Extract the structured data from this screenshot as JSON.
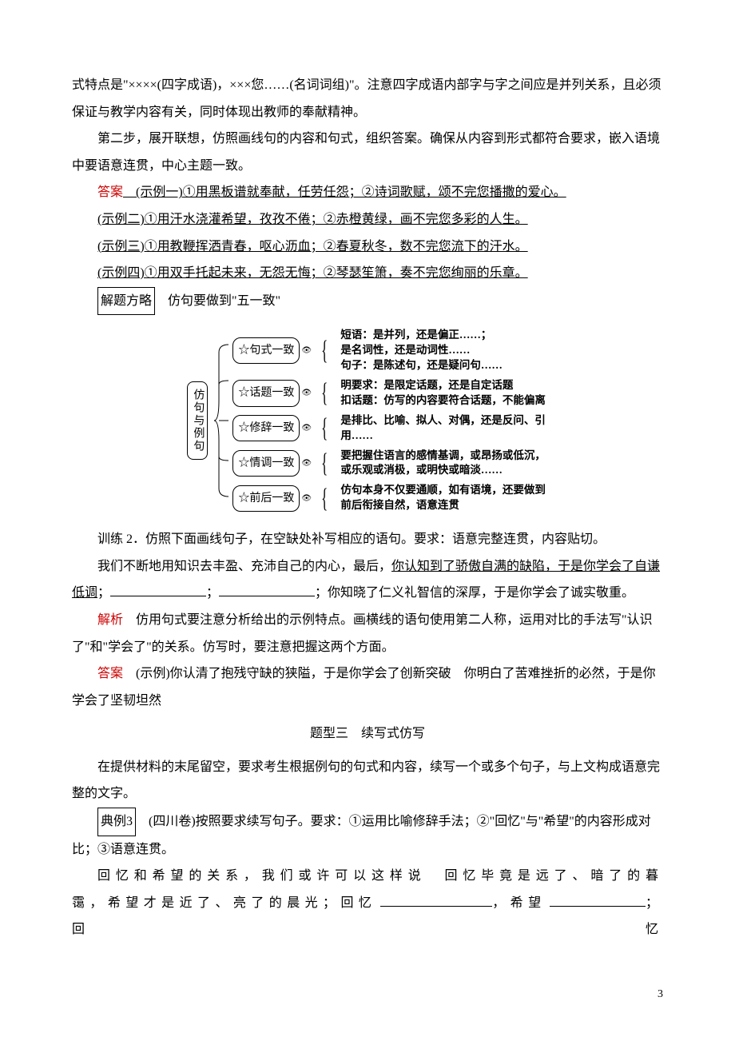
{
  "p1": "式特点是\"××××(四字成语)，×××您……(名词词组)\"。注意四字成语内部字与字之间应是并列关系，且必须保证与教学内容有关，同时体现出教师的奉献精神。",
  "p2": "第二步，展开联想，仿照画线句的内容和句式，组织答案。确保从内容到形式都符合要求，嵌入语境中要语意连贯，中心主题一致。",
  "ans_label": "答案",
  "ans1": "　(示例一)①用黑板谱就奉献，任劳任怨；②诗词歌赋，颂不完您播撒的爱心。",
  "ans2": "(示例二)①用汗水浇灌希望，孜孜不倦；②赤橙黄绿，画不完您多彩的人生。",
  "ans3": "(示例三)①用教鞭挥洒青春，呕心沥血；②春夏秋冬，数不完您流下的汗水。",
  "ans4": "(示例四)①用双手托起未来，无怨无悔；②琴瑟笙箫，奏不完您绚丽的乐章。",
  "method_box": "解题方略",
  "method_text": "　仿句要做到\"五一致\"",
  "diagram": {
    "root": "仿句与例句",
    "branches": [
      {
        "label": "☆句式一致",
        "desc": "短语：是并列，还是偏正……；\n是名词性，还是动词性……\n句子：是陈述句，还是疑问句……"
      },
      {
        "label": "☆话题一致",
        "desc": "明要求：是限定话题，还是自定话题\n扣话题：仿写的内容要符合话题，不能偏离"
      },
      {
        "label": "☆修辞一致",
        "desc": "是排比、比喻、拟人、对偶，还是反问、引用……"
      },
      {
        "label": "☆情调一致",
        "desc": "要把握住语言的感情基调，或昂扬或低沉，或乐观或消极，或明快或暗淡……"
      },
      {
        "label": "☆前后一致",
        "desc": "仿句本身不仅要通顺，如有语境，还要做到前后衔接自然，语意连贯"
      }
    ]
  },
  "train2_a": "训练 2．仿照下面画线句子，在空缺处补写相应的语句。要求：语意完整连贯，内容贴切。",
  "train2_b1": "我们不断地用知识去丰盈、充沛自己的内心，最后，",
  "train2_b2": "你认知到了骄傲自满的缺陷，于是你学会了自谦低调",
  "train2_b3": "；",
  "train2_b4": "；",
  "train2_b5": "；你知晓了仁义礼智信的深厚，于是你学会了诚实敬重。",
  "parse_label": "解析",
  "parse_text": "　仿用句式要注意分析给出的示例特点。画横线的语句使用第二人称，运用对比的手法写\"认识了\"和\"学会了\"的关系。仿写时，要注意把握这两个方面。",
  "ans2_text": "　(示例)你认清了抱残守缺的狭隘，于是你学会了创新突破　你明白了苦难挫折的必然，于是你学会了坚韧坦然",
  "section3": "题型三　续写式仿写",
  "sec3_p1": "在提供材料的末尾留空，要求考生根据例句的句式和内容，续写一个或多个句子，与上文构成语意完整的文字。",
  "ex3_box": "典例3",
  "ex3_text": "　(四川卷)按照要求续写句子。要求：①运用比喻修辞手法；②\"回忆\"与\"希望\"的内容形成对比；③语意连贯。",
  "ex3_p2a": "回忆和希望的关系，我们或许可以这样说　回忆毕竟是远了、暗了的暮霭，希望才是近了、亮了的晨光；回忆",
  "ex3_p2b": "，希望",
  "ex3_p2c": "；回忆",
  "page_num": "3"
}
